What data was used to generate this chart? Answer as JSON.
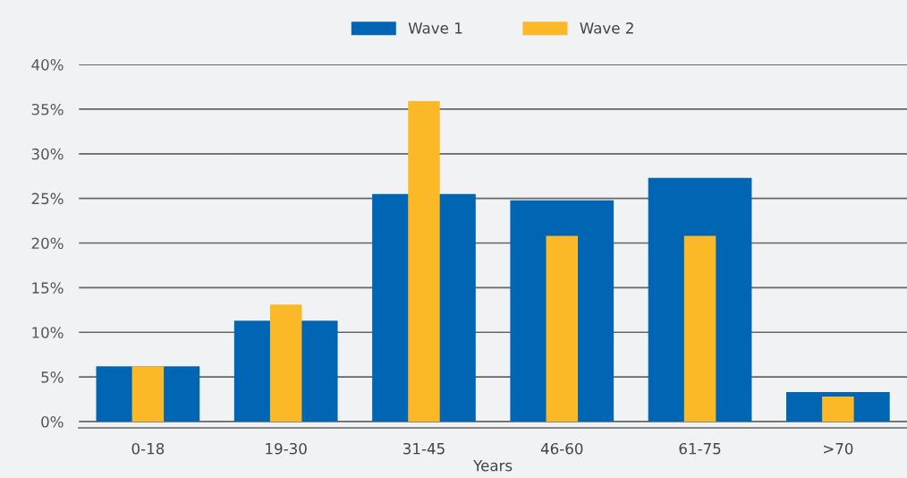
{
  "chart_data": {
    "type": "bar",
    "xlabel": "Years",
    "categories": [
      "0-18",
      "19-30",
      "31-45",
      "46-60",
      "61-75",
      ">70"
    ],
    "series": [
      {
        "name": "Wave 1",
        "color": "#0066b3",
        "values": [
          6.2,
          11.3,
          25.5,
          24.8,
          27.3,
          3.3
        ]
      },
      {
        "name": "Wave 2",
        "color": "#fbb827",
        "values": [
          6.2,
          13.1,
          35.9,
          20.8,
          20.8,
          2.8
        ]
      }
    ],
    "ylim": [
      -0.7,
      40
    ],
    "yticks": [
      {
        "value": 0,
        "label": "0%"
      },
      {
        "value": 5,
        "label": "5%"
      },
      {
        "value": 10,
        "label": "10%"
      },
      {
        "value": 15,
        "label": "15%"
      },
      {
        "value": 20,
        "label": "20%"
      },
      {
        "value": 25,
        "label": "25%"
      },
      {
        "value": 30,
        "label": "30%"
      },
      {
        "value": 35,
        "label": "35%"
      },
      {
        "value": 40,
        "label": "40%"
      }
    ],
    "grid": "y",
    "legend": "top"
  }
}
